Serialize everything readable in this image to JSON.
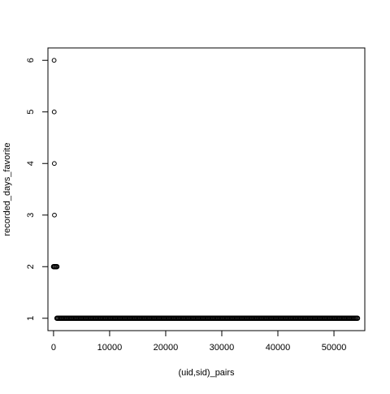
{
  "chart_data": {
    "type": "scatter",
    "title": "",
    "xlabel": "(uid,sid)_pairs",
    "ylabel": "recorded_days_favorite",
    "xlim": [
      -1000,
      55500
    ],
    "ylim": [
      0.76,
      6.24
    ],
    "x_ticks": [
      0,
      10000,
      20000,
      30000,
      40000,
      50000
    ],
    "y_ticks": [
      1,
      2,
      3,
      4,
      5,
      6
    ],
    "grid": false,
    "legend": "none",
    "marker": "open-circle",
    "colors": {
      "background": "#ffffff",
      "points": "#000000",
      "axes": "#000000"
    },
    "series": [
      {
        "points": [
          [
            100,
            6
          ],
          [
            120,
            5
          ],
          [
            140,
            4
          ],
          [
            160,
            3
          ]
        ],
        "segments": [
          {
            "y": 2,
            "x_from": 0,
            "x_to": 600
          },
          {
            "y": 1,
            "x_from": 600,
            "x_to": 54200
          }
        ]
      }
    ]
  }
}
